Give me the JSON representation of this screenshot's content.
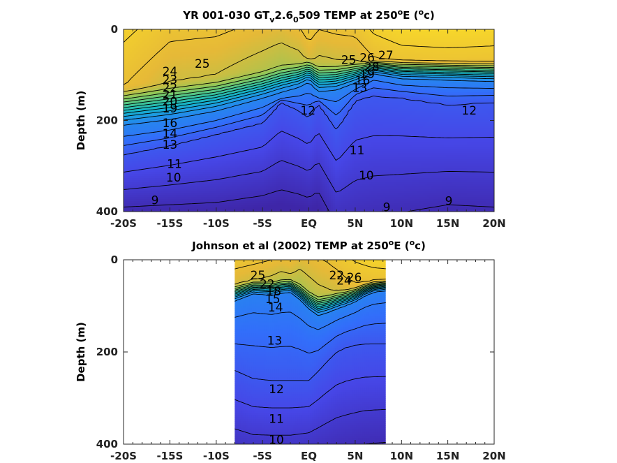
{
  "chart_data": [
    {
      "type": "contour",
      "title": {
        "main": "YR 001-030 GT",
        "sub1": "v",
        "mid": "2.6",
        "sub2": "0",
        "end": "509 TEMP at 250",
        "sup": "o",
        "end2": "E (",
        "sup2": "o",
        "end3": "c)"
      },
      "ylabel": "Depth (m)",
      "x_ticks": [
        "-20S",
        "-15S",
        "-10S",
        "-5S",
        "EQ",
        "5N",
        "10N",
        "15N",
        "20N"
      ],
      "x_tick_values": [
        -20,
        -15,
        -10,
        -5,
        0,
        5,
        10,
        15,
        20
      ],
      "y_ticks": [
        "0",
        "200",
        "400"
      ],
      "y_tick_values": [
        0,
        200,
        400
      ],
      "xlim": [
        -20,
        20
      ],
      "ylim": [
        0,
        400
      ],
      "data_extent": [
        -20,
        20
      ],
      "contour_labels": [
        {
          "text": "25",
          "x": -11.5,
          "y": 75
        },
        {
          "text": "24",
          "x": -15.0,
          "y": 92
        },
        {
          "text": "23",
          "x": -15.0,
          "y": 110
        },
        {
          "text": "22",
          "x": -15.0,
          "y": 128
        },
        {
          "text": "21",
          "x": -15.0,
          "y": 143
        },
        {
          "text": "20",
          "x": -15.0,
          "y": 158
        },
        {
          "text": "19",
          "x": -15.0,
          "y": 173
        },
        {
          "text": "16",
          "x": -15.0,
          "y": 205
        },
        {
          "text": "14",
          "x": -15.0,
          "y": 228
        },
        {
          "text": "13",
          "x": -15.0,
          "y": 253
        },
        {
          "text": "11",
          "x": -14.5,
          "y": 295
        },
        {
          "text": "10",
          "x": -14.6,
          "y": 325
        },
        {
          "text": "9",
          "x": -16.6,
          "y": 375
        },
        {
          "text": "12",
          "x": -0.1,
          "y": 178
        },
        {
          "text": "12",
          "x": 17.3,
          "y": 178
        },
        {
          "text": "11",
          "x": 5.2,
          "y": 265
        },
        {
          "text": "10",
          "x": 6.2,
          "y": 320
        },
        {
          "text": "9",
          "x": 8.4,
          "y": 390
        },
        {
          "text": "9",
          "x": 15.1,
          "y": 376
        },
        {
          "text": "25",
          "x": 4.3,
          "y": 67
        },
        {
          "text": "26",
          "x": 6.3,
          "y": 62
        },
        {
          "text": "27",
          "x": 8.3,
          "y": 57
        },
        {
          "text": "28",
          "x": 6.8,
          "y": 82
        },
        {
          "text": "19",
          "x": 6.3,
          "y": 98
        },
        {
          "text": "16",
          "x": 5.8,
          "y": 112
        },
        {
          "text": "13",
          "x": 5.5,
          "y": 128
        }
      ],
      "field": {
        "x": [
          -20,
          -15,
          -10,
          -5,
          -3,
          -1,
          0,
          1,
          3,
          5,
          7,
          10,
          15,
          20
        ],
        "surface": [
          27.3,
          26.3,
          26.2,
          25.7,
          25.5,
          25.9,
          26.6,
          26.0,
          26.2,
          26.3,
          27.2,
          27.7,
          27.8,
          27.7
        ],
        "thermocline_center": [
          170,
          160,
          145,
          122,
          110,
          100,
          90,
          108,
          105,
          95,
          82,
          88,
          90,
          92
        ],
        "thermocline_thickness": [
          110,
          105,
          95,
          82,
          80,
          75,
          70,
          80,
          78,
          62,
          42,
          55,
          58,
          60
        ],
        "deep_12": [
          275,
          255,
          230,
          205,
          158,
          180,
          195,
          160,
          220,
          155,
          145,
          150,
          165,
          160
        ],
        "deep_9": [
          390,
          385,
          380,
          365,
          352,
          362,
          370,
          355,
          430,
          420,
          410,
          402,
          385,
          390
        ]
      }
    },
    {
      "type": "contour",
      "title": {
        "main": "Johnson et al (2002) TEMP at 250",
        "sup": "o",
        "end2": "E (",
        "sup2": "o",
        "end3": "c)"
      },
      "ylabel": "Depth (m)",
      "x_ticks": [
        "-20S",
        "-15S",
        "-10S",
        "-5S",
        "EQ",
        "5N",
        "10N",
        "15N",
        "20N"
      ],
      "x_tick_values": [
        -20,
        -15,
        -10,
        -5,
        0,
        5,
        10,
        15,
        20
      ],
      "y_ticks": [
        "0",
        "200",
        "400"
      ],
      "y_tick_values": [
        0,
        200,
        400
      ],
      "xlim": [
        -20,
        20
      ],
      "ylim": [
        0,
        400
      ],
      "data_extent": [
        -8,
        8.3
      ],
      "contour_labels": [
        {
          "text": "25",
          "x": -5.5,
          "y": 33
        },
        {
          "text": "22",
          "x": -4.5,
          "y": 52
        },
        {
          "text": "18",
          "x": -3.8,
          "y": 68
        },
        {
          "text": "15",
          "x": -3.9,
          "y": 85
        },
        {
          "text": "14",
          "x": -3.6,
          "y": 103
        },
        {
          "text": "13",
          "x": -3.7,
          "y": 175
        },
        {
          "text": "12",
          "x": -3.5,
          "y": 280
        },
        {
          "text": "11",
          "x": -3.5,
          "y": 345
        },
        {
          "text": "10",
          "x": -3.5,
          "y": 390
        },
        {
          "text": "22",
          "x": 3.0,
          "y": 33
        },
        {
          "text": "24",
          "x": 3.8,
          "y": 45
        },
        {
          "text": "26",
          "x": 4.9,
          "y": 38
        }
      ],
      "field": {
        "x": [
          -8,
          -6,
          -4,
          -3,
          -2,
          -1,
          0,
          1,
          2,
          3,
          4,
          5,
          6,
          7,
          8.3
        ],
        "surface": [
          26.5,
          26.3,
          26.0,
          25.8,
          26.0,
          25.5,
          25.7,
          25.9,
          26.1,
          26.4,
          26.8,
          27.1,
          27.3,
          27.5,
          27.6
        ],
        "thermocline_center": [
          72,
          60,
          62,
          58,
          56,
          70,
          88,
          100,
          95,
          88,
          82,
          75,
          65,
          58,
          55
        ],
        "thermocline_thickness": [
          48,
          38,
          42,
          40,
          40,
          45,
          52,
          58,
          55,
          52,
          48,
          44,
          38,
          34,
          32
        ],
        "deep_12": [
          240,
          258,
          262,
          262,
          262,
          262,
          262,
          242,
          220,
          200,
          190,
          185,
          182,
          182,
          182
        ],
        "deep_9": [
          430,
          440,
          440,
          440,
          440,
          436,
          432,
          426,
          420,
          414,
          410,
          405,
          400,
          398,
          396
        ]
      }
    }
  ]
}
